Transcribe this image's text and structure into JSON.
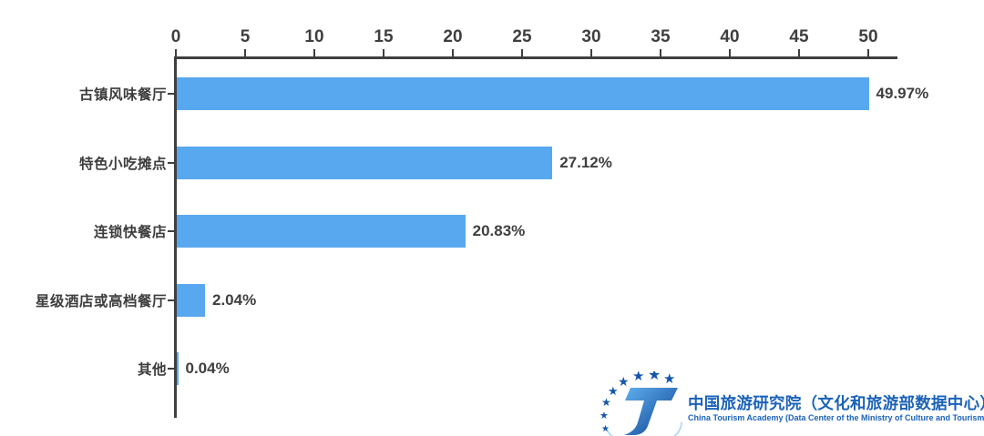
{
  "chart_data": {
    "type": "bar",
    "orientation": "horizontal",
    "title": "",
    "xlabel": "",
    "ylabel": "",
    "categories": [
      "古镇风味餐厅",
      "特色小吃摊点",
      "连锁快餐店",
      "星级酒店或高档餐厅",
      "其他"
    ],
    "values": [
      49.97,
      27.12,
      20.83,
      2.04,
      0.04
    ],
    "value_labels": [
      "49.97%",
      "27.12%",
      "20.83%",
      "2.04%",
      "0.04%"
    ],
    "x_ticks": [
      0,
      5,
      10,
      15,
      20,
      25,
      30,
      35,
      40,
      45,
      50
    ],
    "xlim": [
      0,
      50
    ],
    "grid": false,
    "legend": "none",
    "bar_color": "#58a8f0",
    "axis_color": "#3f3f3f",
    "label_color": "#3d3d3d"
  },
  "branding": {
    "org_cn": "中国旅游研究院（文化和旅游部数据中心）",
    "org_en": "China Tourism Academy (Data Center of the Ministry of Culture and Tourism)",
    "logo_blue": "#1b62b8"
  }
}
